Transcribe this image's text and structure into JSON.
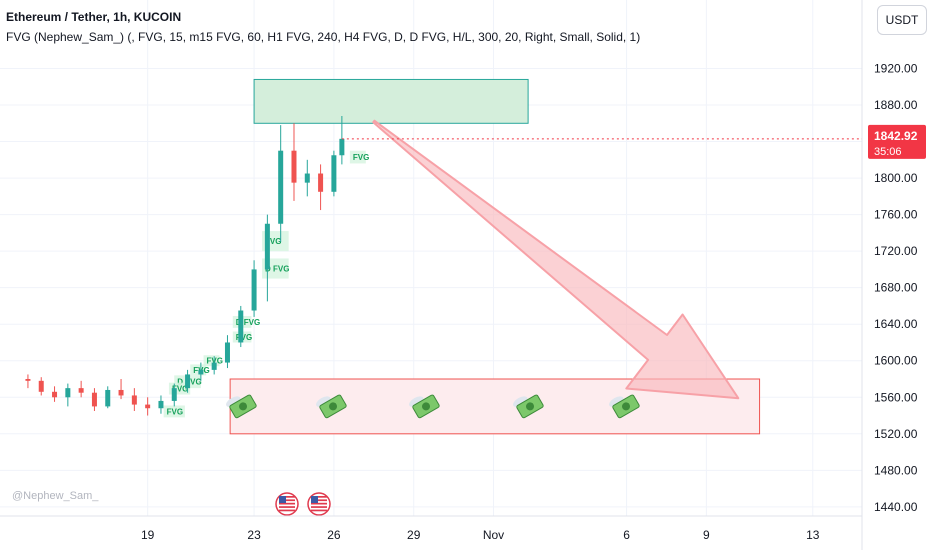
{
  "header": {
    "title": "Ethereum / Tether, 1h, KUCOIN",
    "indicator": "FVG (Nephew_Sam_) (, FVG, 15, m15 FVG, 60, H1 FVG, 240, H4 FVG, D, D FVG, H/L, 300, 20, Right, Small, Solid, 1)"
  },
  "currency_button": "USDT",
  "watermark": "@Nephew_Sam_",
  "price_tag": {
    "price": "1842.92",
    "countdown": "35:06"
  },
  "colors": {
    "up": "#26a69a",
    "down": "#ef5350",
    "price_tag": "#f23645",
    "zone_green": "#b7e4c7",
    "zone_red": "#f8c5c8"
  },
  "chart_data": {
    "type": "candlestick",
    "symbol": "ETH/USDT",
    "timeframe": "1h",
    "y_ticks": [
      1920,
      1880,
      1840,
      1800,
      1760,
      1720,
      1680,
      1640,
      1600,
      1560,
      1520,
      1480,
      1440
    ],
    "ylim": [
      1430,
      1995
    ],
    "x_ticks": [
      {
        "label": "19",
        "day": 19
      },
      {
        "label": "23",
        "day": 23
      },
      {
        "label": "26",
        "day": 26
      },
      {
        "label": "29",
        "day": 29
      },
      {
        "label": "Nov",
        "day": 32
      },
      {
        "label": "6",
        "day": 37
      },
      {
        "label": "9",
        "day": 40
      },
      {
        "label": "13",
        "day": 44
      }
    ],
    "last_price": 1842.92,
    "candles": [
      [
        14.5,
        1580,
        1585,
        1570,
        1578
      ],
      [
        15.0,
        1578,
        1582,
        1562,
        1566
      ],
      [
        15.5,
        1566,
        1572,
        1555,
        1560
      ],
      [
        16.0,
        1560,
        1575,
        1550,
        1570
      ],
      [
        16.5,
        1570,
        1578,
        1560,
        1565
      ],
      [
        17.0,
        1565,
        1570,
        1545,
        1550
      ],
      [
        17.5,
        1550,
        1572,
        1548,
        1568
      ],
      [
        18.0,
        1568,
        1580,
        1558,
        1562
      ],
      [
        18.5,
        1562,
        1570,
        1545,
        1552
      ],
      [
        19.0,
        1552,
        1560,
        1540,
        1548
      ],
      [
        19.5,
        1548,
        1562,
        1542,
        1556
      ],
      [
        20.0,
        1556,
        1575,
        1550,
        1570
      ],
      [
        20.5,
        1570,
        1590,
        1565,
        1585
      ],
      [
        21.0,
        1585,
        1598,
        1578,
        1590
      ],
      [
        21.5,
        1590,
        1605,
        1585,
        1598
      ],
      [
        22.0,
        1598,
        1628,
        1592,
        1620
      ],
      [
        22.5,
        1620,
        1660,
        1615,
        1655
      ],
      [
        23.0,
        1655,
        1710,
        1648,
        1700
      ],
      [
        23.5,
        1700,
        1760,
        1665,
        1750
      ],
      [
        24.0,
        1750,
        1858,
        1730,
        1830
      ],
      [
        24.5,
        1830,
        1860,
        1775,
        1795
      ],
      [
        25.0,
        1795,
        1820,
        1780,
        1805
      ],
      [
        25.5,
        1805,
        1815,
        1765,
        1785
      ],
      [
        26.0,
        1785,
        1830,
        1780,
        1825
      ],
      [
        26.3,
        1825,
        1868,
        1815,
        1843
      ]
    ],
    "fvg_zones": [
      {
        "label": "FVG",
        "day_from": 26.6,
        "day_to": 27.2,
        "y_top": 1830,
        "y_bottom": 1816
      },
      {
        "label": "FVG",
        "day_from": 23.3,
        "day_to": 24.3,
        "y_top": 1742,
        "y_bottom": 1720
      },
      {
        "label": "D FVG",
        "day_from": 23.3,
        "day_to": 24.3,
        "y_top": 1712,
        "y_bottom": 1690
      },
      {
        "label": "D FVG",
        "day_from": 22.2,
        "day_to": 22.9,
        "y_top": 1649,
        "y_bottom": 1636
      },
      {
        "label": "FVG",
        "day_from": 22.2,
        "day_to": 22.9,
        "y_top": 1632,
        "y_bottom": 1620
      },
      {
        "label": "FVG",
        "day_from": 21.1,
        "day_to": 21.7,
        "y_top": 1606,
        "y_bottom": 1594
      },
      {
        "label": "FVG",
        "day_from": 20.6,
        "day_to": 21.2,
        "y_top": 1596,
        "y_bottom": 1584
      },
      {
        "label": "D FVG",
        "day_from": 20.0,
        "day_to": 21.0,
        "y_top": 1584,
        "y_bottom": 1570
      },
      {
        "label": "FVG",
        "day_from": 19.8,
        "day_to": 20.6,
        "y_top": 1576,
        "y_bottom": 1563
      },
      {
        "label": "FVG",
        "day_from": 19.6,
        "day_to": 20.4,
        "y_top": 1551,
        "y_bottom": 1538
      }
    ],
    "resistance_zone": {
      "y_top": 1908,
      "y_bottom": 1860,
      "day_from": 23.0,
      "day_to": 33.3
    },
    "target_zone": {
      "y_top": 1580,
      "y_bottom": 1520,
      "day_from": 22.1,
      "day_to": 42.0
    },
    "arrow": {
      "from_day": 27.5,
      "from_price": 1862,
      "to_day": 41.2,
      "to_price": 1559
    },
    "target_icons": [
      "money-with-wings-icon",
      "money-with-wings-icon",
      "money-with-wings-icon",
      "money-with-wings-icon",
      "money-with-wings-icon"
    ],
    "event_markers": [
      "us-flag-icon",
      "us-flag-icon"
    ]
  }
}
